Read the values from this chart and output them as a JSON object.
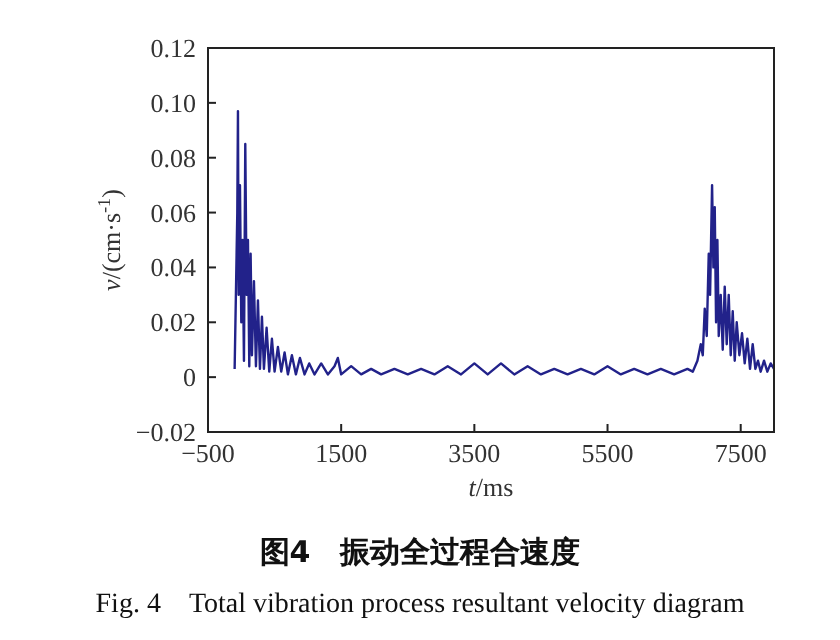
{
  "chart_data": {
    "type": "line",
    "title": "图4　振动全过程合速度",
    "subtitle": "Fig. 4　Total vibration process resultant velocity diagram",
    "xlabel": "*t*/ms",
    "ylabel": "*v*/(cm·s$^{-1}$)",
    "color": "#22228a",
    "xlim": [
      -500,
      8000
    ],
    "ylim": [
      -0.02,
      0.12
    ],
    "xticks": [
      -500,
      1500,
      3500,
      5500,
      7500
    ],
    "yticks": [
      -0.02,
      0,
      0.02,
      0.04,
      0.06,
      0.08,
      {
        "value": 0.1,
        "label": "0.10"
      },
      0.12
    ],
    "x": [
      -100,
      -60,
      -50,
      -40,
      -20,
      0,
      20,
      40,
      60,
      80,
      100,
      120,
      140,
      160,
      190,
      220,
      250,
      280,
      310,
      340,
      380,
      420,
      460,
      500,
      550,
      600,
      650,
      700,
      760,
      820,
      880,
      950,
      1020,
      1100,
      1200,
      1300,
      1400,
      1450,
      1500,
      1650,
      1800,
      1950,
      2100,
      2300,
      2500,
      2700,
      2900,
      3100,
      3300,
      3500,
      3700,
      3900,
      4100,
      4300,
      4500,
      4700,
      4900,
      5100,
      5300,
      5500,
      5700,
      5900,
      6100,
      6300,
      6500,
      6700,
      6780,
      6850,
      6900,
      6930,
      6960,
      6990,
      7020,
      7040,
      7070,
      7090,
      7110,
      7130,
      7150,
      7170,
      7200,
      7230,
      7260,
      7290,
      7320,
      7350,
      7380,
      7410,
      7440,
      7480,
      7520,
      7560,
      7600,
      7640,
      7680,
      7720,
      7760,
      7800,
      7850,
      7900,
      7950,
      8000
    ],
    "values": [
      0.003,
      0.06,
      0.097,
      0.03,
      0.07,
      0.02,
      0.05,
      0.006,
      0.085,
      0.03,
      0.05,
      0.004,
      0.045,
      0.008,
      0.035,
      0.004,
      0.028,
      0.003,
      0.022,
      0.003,
      0.018,
      0.002,
      0.014,
      0.002,
      0.011,
      0.002,
      0.009,
      0.001,
      0.008,
      0.001,
      0.007,
      0.001,
      0.005,
      0.001,
      0.005,
      0.001,
      0.004,
      0.007,
      0.001,
      0.004,
      0.001,
      0.003,
      0.001,
      0.003,
      0.001,
      0.003,
      0.001,
      0.004,
      0.001,
      0.005,
      0.001,
      0.005,
      0.001,
      0.004,
      0.001,
      0.003,
      0.001,
      0.003,
      0.001,
      0.004,
      0.001,
      0.003,
      0.001,
      0.003,
      0.001,
      0.003,
      0.002,
      0.006,
      0.012,
      0.008,
      0.025,
      0.015,
      0.045,
      0.03,
      0.07,
      0.04,
      0.062,
      0.02,
      0.05,
      0.015,
      0.03,
      0.01,
      0.033,
      0.012,
      0.03,
      0.008,
      0.024,
      0.006,
      0.02,
      0.008,
      0.016,
      0.005,
      0.014,
      0.003,
      0.012,
      0.003,
      0.006,
      0.002,
      0.006,
      0.002,
      0.005,
      0.003
    ]
  }
}
